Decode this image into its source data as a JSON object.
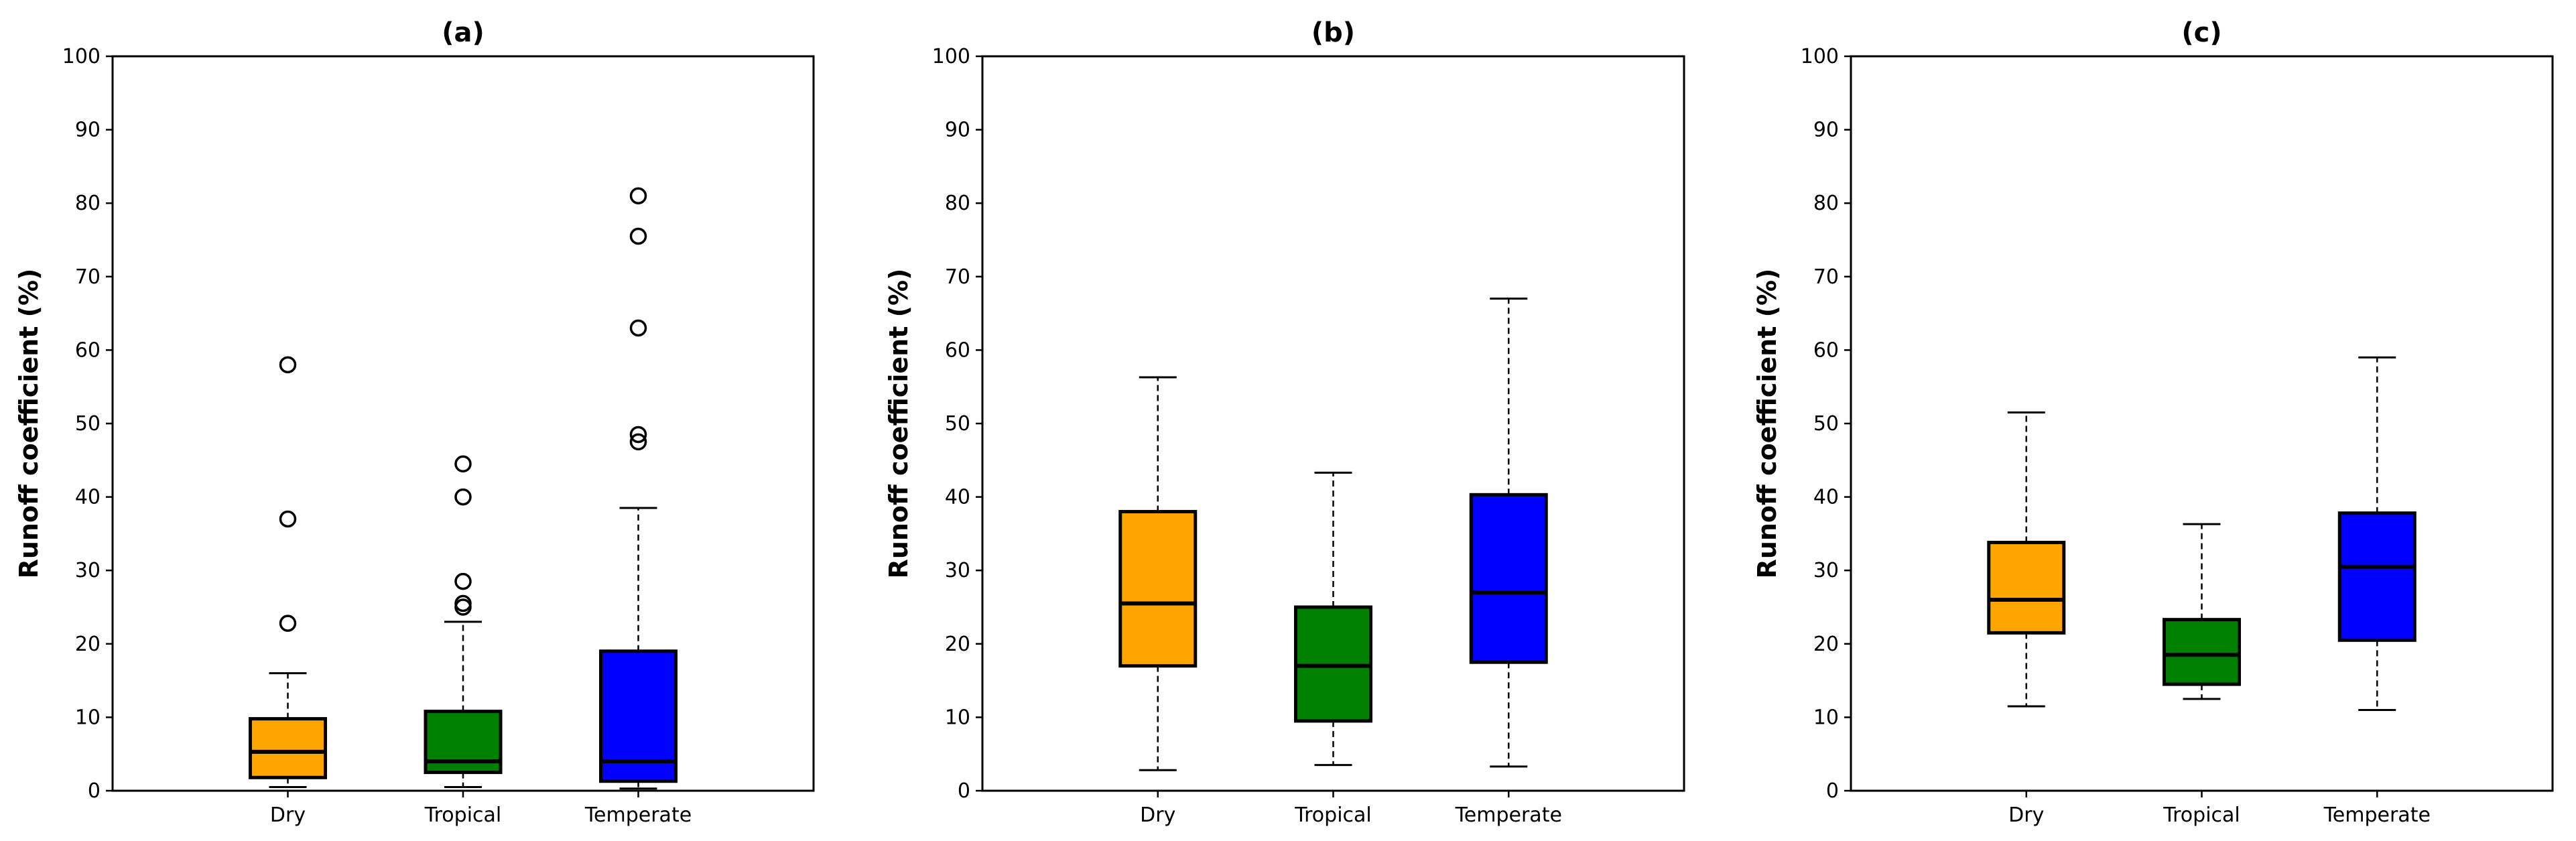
{
  "chart_data": [
    {
      "type": "box",
      "title": "(a)",
      "xlabel": "",
      "ylabel": "Runoff coefficient (%)",
      "ylim": [
        0,
        100
      ],
      "yticks": [
        0,
        10,
        20,
        30,
        40,
        50,
        60,
        70,
        80,
        90,
        100
      ],
      "categories": [
        "Dry",
        "Tropical",
        "Temperate"
      ],
      "boxes": [
        {
          "name": "Dry",
          "color": "#FFA500",
          "whisker_low": 0.5,
          "q1": 1.8,
          "median": 5.3,
          "q3": 9.8,
          "whisker_high": 16.0,
          "fliers": [
            22.8,
            37.0,
            58.0
          ]
        },
        {
          "name": "Tropical",
          "color": "#008000",
          "whisker_low": 0.5,
          "q1": 2.5,
          "median": 4.0,
          "q3": 10.8,
          "whisker_high": 23.0,
          "fliers": [
            25.0,
            25.5,
            28.5,
            40.0,
            44.5
          ]
        },
        {
          "name": "Temperate",
          "color": "#0000FF",
          "whisker_low": 0.3,
          "q1": 1.3,
          "median": 4.0,
          "q3": 19.0,
          "whisker_high": 38.5,
          "fliers": [
            47.5,
            48.5,
            63.0,
            75.5,
            81.0
          ]
        }
      ]
    },
    {
      "type": "box",
      "title": "(b)",
      "xlabel": "",
      "ylabel": "Runoff coefficient (%)",
      "ylim": [
        0,
        100
      ],
      "yticks": [
        0,
        10,
        20,
        30,
        40,
        50,
        60,
        70,
        80,
        90,
        100
      ],
      "categories": [
        "Dry",
        "Tropical",
        "Temperate"
      ],
      "boxes": [
        {
          "name": "Dry",
          "color": "#FFA500",
          "whisker_low": 2.8,
          "q1": 17.0,
          "median": 25.5,
          "q3": 38.0,
          "whisker_high": 56.3,
          "fliers": []
        },
        {
          "name": "Tropical",
          "color": "#008000",
          "whisker_low": 3.5,
          "q1": 9.5,
          "median": 17.0,
          "q3": 25.0,
          "whisker_high": 43.3,
          "fliers": []
        },
        {
          "name": "Temperate",
          "color": "#0000FF",
          "whisker_low": 3.3,
          "q1": 17.5,
          "median": 27.0,
          "q3": 40.3,
          "whisker_high": 67.0,
          "fliers": []
        }
      ]
    },
    {
      "type": "box",
      "title": "(c)",
      "xlabel": "",
      "ylabel": "Runoff coefficient (%)",
      "ylim": [
        0,
        100
      ],
      "yticks": [
        0,
        10,
        20,
        30,
        40,
        50,
        60,
        70,
        80,
        90,
        100
      ],
      "categories": [
        "Dry",
        "Tropical",
        "Temperate"
      ],
      "boxes": [
        {
          "name": "Dry",
          "color": "#FFA500",
          "whisker_low": 11.5,
          "q1": 21.5,
          "median": 26.0,
          "q3": 33.8,
          "whisker_high": 51.5,
          "fliers": []
        },
        {
          "name": "Tropical",
          "color": "#008000",
          "whisker_low": 12.5,
          "q1": 14.5,
          "median": 18.5,
          "q3": 23.3,
          "whisker_high": 36.3,
          "fliers": []
        },
        {
          "name": "Temperate",
          "color": "#0000FF",
          "whisker_low": 11.0,
          "q1": 20.5,
          "median": 30.5,
          "q3": 37.8,
          "whisker_high": 59.0,
          "fliers": []
        }
      ]
    }
  ]
}
